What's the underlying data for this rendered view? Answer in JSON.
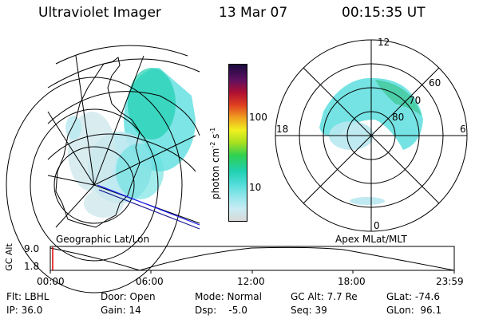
{
  "header": {
    "title": "Ultraviolet Imager",
    "date": "13 Mar 07",
    "time": "00:15:35 UT"
  },
  "geo_panel": {
    "label": "Geographic Lat/Lon"
  },
  "apex_panel": {
    "label": "Apex MLat/MLT",
    "mlt_labels": {
      "top": "12",
      "left": "18",
      "right": "6",
      "bottom": "0"
    },
    "lat_labels": [
      "60",
      "70",
      "80"
    ]
  },
  "colorbar": {
    "unit_label": "photon cm^-2 s^-1",
    "unit_base": "photon cm",
    "unit_exp1": "-2",
    "unit_mid": "s",
    "unit_exp2": "-1",
    "tick_labels": [
      "100",
      "10"
    ],
    "colors": [
      "#d9d9d9",
      "#b8e8f0",
      "#66e0e0",
      "#20d0b0",
      "#30d050",
      "#b0e020",
      "#f0f020",
      "#f0a020",
      "#e04020",
      "#b01030",
      "#601060",
      "#1a0a40"
    ]
  },
  "timeline": {
    "axis_label_title": "GC Alt",
    "y_max_label": "9.0",
    "y_min_label": "1.8",
    "time_labels": [
      "00:00",
      "06:00",
      "12:00",
      "18:00",
      "23:59"
    ],
    "marker_color": "#e00000"
  },
  "info": {
    "flt": "Flt: LBHL",
    "ip": "IP: 36.0",
    "door": "Door: Open",
    "gain": "Gain: 14",
    "mode": "Mode: Normal",
    "dsp": "Dsp:    -5.0",
    "gc_alt": "GC Alt: 7.7 Re",
    "seq": "Seq: 39",
    "glat": "GLat: -74.6",
    "glon": "GLon:  96.1"
  }
}
